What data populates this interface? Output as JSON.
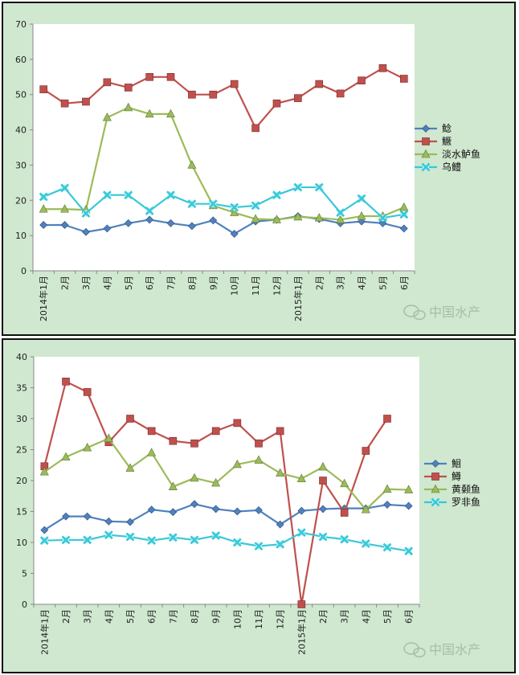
{
  "watermark": "中国水产",
  "colors": {
    "s1": "#4f81bd",
    "s2": "#c0504d",
    "s3": "#9bbb59",
    "s4": "#38c8d8"
  },
  "chart_data": [
    {
      "type": "line",
      "categories": [
        "2014年1月",
        "2月",
        "3月",
        "4月",
        "5月",
        "6月",
        "7月",
        "8月",
        "9月",
        "10月",
        "11月",
        "12月",
        "2015年1月",
        "2月",
        "3月",
        "4月",
        "5月",
        "6月"
      ],
      "ylim": [
        0,
        70
      ],
      "yticks": [
        0,
        10,
        20,
        30,
        40,
        50,
        60,
        70
      ],
      "legend_position": "right",
      "series": [
        {
          "name": "鲶",
          "marker": "diamond",
          "color": "#4f81bd",
          "values": [
            13,
            13,
            11,
            12,
            13.5,
            14.5,
            13.5,
            12.7,
            14.3,
            10.5,
            14,
            14.5,
            15.5,
            14.7,
            13.5,
            14,
            13.5,
            12
          ]
        },
        {
          "name": "鳜",
          "marker": "square",
          "color": "#c0504d",
          "values": [
            51.5,
            47.5,
            48,
            53.5,
            52,
            55,
            55,
            50,
            50,
            53,
            40.5,
            47.5,
            49,
            53,
            50.3,
            54,
            57.5,
            54.5
          ]
        },
        {
          "name": "淡水鲈鱼",
          "marker": "triangle",
          "color": "#9bbb59",
          "values": [
            17.5,
            17.5,
            17.3,
            43.5,
            46.3,
            44.5,
            44.5,
            30,
            18.5,
            16.5,
            14.7,
            14.5,
            15.3,
            15,
            14.5,
            15.5,
            15.5,
            18
          ]
        },
        {
          "name": "乌鳢",
          "marker": "x",
          "color": "#38c8d8",
          "values": [
            21,
            23.5,
            16.3,
            21.5,
            21.5,
            17,
            21.5,
            19,
            19,
            18,
            18.5,
            21.5,
            23.7,
            23.7,
            16.5,
            20.5,
            15,
            16
          ]
        }
      ]
    },
    {
      "type": "line",
      "categories": [
        "2014年1月",
        "2月",
        "3月",
        "4月",
        "5月",
        "6月",
        "7月",
        "8月",
        "9月",
        "10月",
        "11月",
        "12月",
        "2015年1月",
        "2月",
        "3月",
        "4月",
        "5月",
        "6月"
      ],
      "ylim": [
        0,
        40
      ],
      "yticks": [
        0,
        5,
        10,
        15,
        20,
        25,
        30,
        35,
        40
      ],
      "legend_position": "right",
      "series": [
        {
          "name": "鮰",
          "marker": "diamond",
          "color": "#4f81bd",
          "values": [
            12,
            14.2,
            14.2,
            13.4,
            13.3,
            15.3,
            14.9,
            16.2,
            15.4,
            15,
            15.2,
            12.9,
            15.1,
            15.4,
            15.5,
            15.5,
            16.1,
            15.9
          ]
        },
        {
          "name": "鳟",
          "marker": "square",
          "color": "#c0504d",
          "values": [
            22.3,
            36,
            34.3,
            26.2,
            30,
            28,
            26.4,
            26,
            28,
            29.3,
            26,
            28,
            0,
            20,
            14.8,
            24.8,
            30,
            null
          ]
        },
        {
          "name": "黄颡鱼",
          "marker": "triangle",
          "color": "#9bbb59",
          "values": [
            21.4,
            23.8,
            25.3,
            26.8,
            22,
            24.5,
            19,
            20.4,
            19.6,
            22.6,
            23.3,
            21.2,
            20.3,
            22.2,
            19.5,
            15.3,
            18.6,
            18.5
          ]
        },
        {
          "name": "罗非鱼",
          "marker": "x",
          "color": "#38c8d8",
          "values": [
            10.3,
            10.4,
            10.4,
            11.2,
            10.9,
            10.3,
            10.8,
            10.4,
            11.1,
            10,
            9.4,
            9.7,
            11.6,
            10.9,
            10.5,
            9.8,
            9.2,
            8.6
          ]
        }
      ]
    }
  ]
}
